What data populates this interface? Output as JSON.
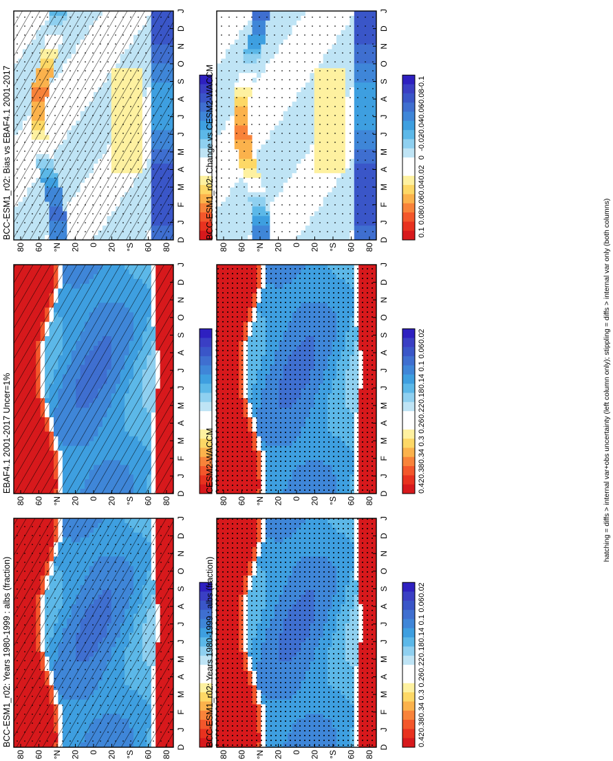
{
  "figure": {
    "footnote": "hatching = diffs > internal var+obs uncertainty (left column only); stippling = diffs > internal var only (both columns)"
  },
  "chart_data": [
    {
      "type": "heatmap",
      "title": "BCC-ESM1_r02: Years 1980-1999 : albs (fraction)",
      "x_ticks": [
        "D",
        "J",
        "F",
        "M",
        "A",
        "M",
        "J",
        "J",
        "A",
        "S",
        "O",
        "N",
        "D",
        "J"
      ],
      "y_ticks": [
        "80",
        "60",
        "°N",
        "20",
        "0",
        "20",
        "°S",
        "60",
        "80"
      ],
      "colorbar": [
        "0.42",
        "0.38",
        "0.34",
        "0.3",
        "0.26",
        "0.22",
        "0.18",
        "0.14",
        "0.1",
        "0.06",
        "0.02"
      ],
      "palette": "absolute",
      "hatching": true,
      "stippling": "sparse"
    },
    {
      "type": "heatmap",
      "title": "BCC-ESM1_r02: Years 1980-1999 : albs (fraction)",
      "x_ticks": [
        "D",
        "J",
        "F",
        "M",
        "A",
        "M",
        "J",
        "J",
        "A",
        "S",
        "O",
        "N",
        "D",
        "J"
      ],
      "y_ticks": [
        "80",
        "60",
        "°N",
        "20",
        "0",
        "20",
        "°S",
        "60",
        "80"
      ],
      "colorbar": [
        "0.42",
        "0.38",
        "0.34",
        "0.3",
        "0.26",
        "0.22",
        "0.18",
        "0.14",
        "0.1",
        "0.06",
        "0.02"
      ],
      "palette": "absolute",
      "hatching": false,
      "stippling": "dense"
    },
    {
      "type": "heatmap",
      "title": "EBAF4.1 2001-2017 Uncer=1%",
      "x_ticks": [
        "D",
        "J",
        "F",
        "M",
        "A",
        "M",
        "J",
        "J",
        "A",
        "S",
        "O",
        "N",
        "D",
        "J"
      ],
      "y_ticks": [
        "80",
        "60",
        "°N",
        "20",
        "0",
        "20",
        "°S",
        "60",
        "80"
      ],
      "colorbar": [
        "0.42",
        "0.38",
        "0.34",
        "0.3",
        "0.26",
        "0.22",
        "0.18",
        "0.14",
        "0.1",
        "0.06",
        "0.02"
      ],
      "palette": "absolute",
      "hatching": true,
      "stippling": "none"
    },
    {
      "type": "heatmap",
      "title": "CESM2-WACCM",
      "x_ticks": [
        "D",
        "J",
        "F",
        "M",
        "A",
        "M",
        "J",
        "J",
        "A",
        "S",
        "O",
        "N",
        "D",
        "J"
      ],
      "y_ticks": [
        "80",
        "60",
        "°N",
        "20",
        "0",
        "20",
        "°S",
        "60",
        "80"
      ],
      "colorbar": [
        "0.42",
        "0.38",
        "0.34",
        "0.3",
        "0.26",
        "0.22",
        "0.18",
        "0.14",
        "0.1",
        "0.06",
        "0.02"
      ],
      "palette": "absolute",
      "hatching": false,
      "stippling": "dense"
    },
    {
      "type": "heatmap",
      "title": "BCC-ESM1_r02: Bias vs EBAF4.1 2001-2017",
      "x_ticks": [
        "D",
        "J",
        "F",
        "M",
        "A",
        "M",
        "J",
        "J",
        "A",
        "S",
        "O",
        "N",
        "D",
        "J"
      ],
      "y_ticks": [
        "80",
        "60",
        "°N",
        "20",
        "0",
        "20",
        "°S",
        "60",
        "80"
      ],
      "colorbar": [
        "0.1",
        "0.08",
        "0.06",
        "0.04",
        "0.02",
        "0",
        "-0.02",
        "-0.04",
        "-0.06",
        "-0.08",
        "-0.1"
      ],
      "palette": "diff",
      "hatching": true,
      "stippling": "patchy"
    },
    {
      "type": "heatmap",
      "title": "BCC-ESM1_r02: Change vs CESM2-WACCM",
      "x_ticks": [
        "D",
        "J",
        "F",
        "M",
        "A",
        "M",
        "J",
        "J",
        "A",
        "S",
        "O",
        "N",
        "D",
        "J"
      ],
      "y_ticks": [
        "80",
        "60",
        "°N",
        "20",
        "0",
        "20",
        "°S",
        "60",
        "80"
      ],
      "colorbar": [
        "0.1",
        "0.08",
        "0.06",
        "0.04",
        "0.02",
        "0",
        "-0.02",
        "-0.04",
        "-0.06",
        "-0.08",
        "-0.1"
      ],
      "palette": "diff",
      "hatching": false,
      "stippling": "patchy"
    }
  ],
  "colors": {
    "absolute": [
      "#d7191c",
      "#e8321f",
      "#f3572b",
      "#f8833a",
      "#fbb24c",
      "#fdd866",
      "#fef1a0",
      "#ffffff",
      "#ffffff",
      "#bfe4f5",
      "#8fd0f0",
      "#5cb8e8",
      "#3e9fe0",
      "#3f86d8",
      "#3f6fd0",
      "#3a56c8",
      "#3a3fc4",
      "#2e20c0"
    ],
    "diff": [
      "#d7191c",
      "#e8321f",
      "#f3572b",
      "#f8833a",
      "#fbb24c",
      "#fdd866",
      "#fef1a0",
      "#ffffff",
      "#ffffff",
      "#bfe4f5",
      "#8fd0f0",
      "#5cb8e8",
      "#3e9fe0",
      "#3f86d8",
      "#3f6fd0",
      "#3a56c8",
      "#3a3fc4",
      "#2e20c0"
    ]
  }
}
